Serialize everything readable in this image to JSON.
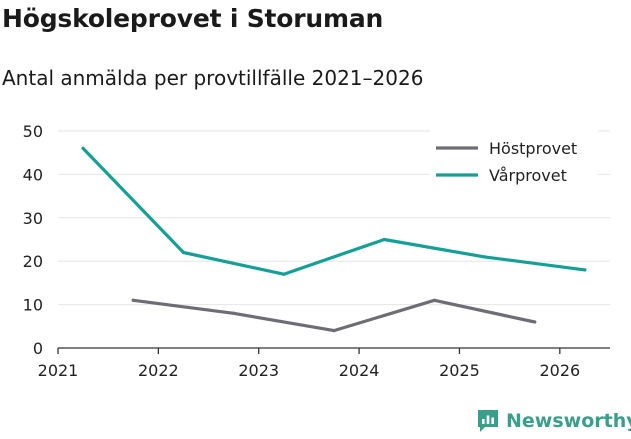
{
  "title": "Högskoleprovet i Storuman",
  "subtitle": "Antal anmälda per provtillfälle 2021–2026",
  "brand": {
    "name": "Newsworthy",
    "icon": "newsworthy-logo-icon"
  },
  "colors": {
    "host": "#6e6d75",
    "var": "#14a096",
    "grid": "#e6e6e6",
    "axis": "#333333",
    "brand": "#3a9f8a"
  },
  "chart_data": {
    "type": "line",
    "title": "Högskoleprovet i Storuman",
    "subtitle": "Antal anmälda per provtillfälle 2021–2026",
    "xlabel": "",
    "ylabel": "",
    "xlim": [
      2021,
      2026.5
    ],
    "ylim": [
      0,
      50
    ],
    "xticks": [
      "2021",
      "2022",
      "2023",
      "2024",
      "2025",
      "2026"
    ],
    "yticks": [
      "0",
      "10",
      "20",
      "30",
      "40",
      "50"
    ],
    "legend_position": "top-right",
    "grid": true,
    "series": [
      {
        "name": "Höstprovet",
        "color": "#6e6d75",
        "x": [
          2021.75,
          2022.75,
          2023.75,
          2024.75,
          2025.75
        ],
        "y": [
          11,
          8,
          4,
          11,
          6
        ]
      },
      {
        "name": "Vårprovet",
        "color": "#14a096",
        "x": [
          2021.25,
          2022.25,
          2023.25,
          2024.25,
          2025.25,
          2026.25
        ],
        "y": [
          46,
          22,
          17,
          25,
          21,
          18
        ]
      }
    ]
  }
}
